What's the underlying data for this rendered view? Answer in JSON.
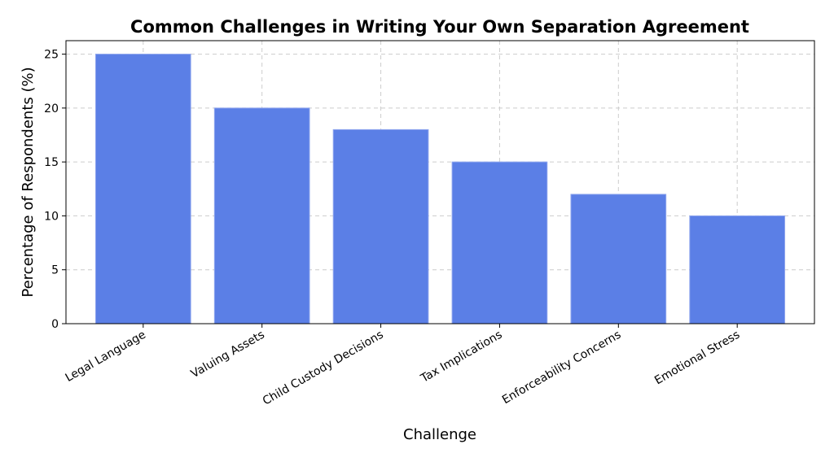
{
  "chart_data": {
    "type": "bar",
    "title": "Common Challenges in Writing Your Own Separation Agreement",
    "x_label": "Challenge",
    "y_label": "Percentage of Respondents (%)",
    "categories": [
      "Legal Language",
      "Valuing Assets",
      "Child Custody Decisions",
      "Tax Implications",
      "Enforceability Concerns",
      "Emotional Stress"
    ],
    "values": [
      25,
      20,
      18,
      15,
      12,
      10
    ],
    "color": "#5b7fe6",
    "ylim": [
      0,
      26.25
    ],
    "yticks": [
      0,
      5,
      10,
      15,
      20,
      25
    ],
    "grid": true
  }
}
